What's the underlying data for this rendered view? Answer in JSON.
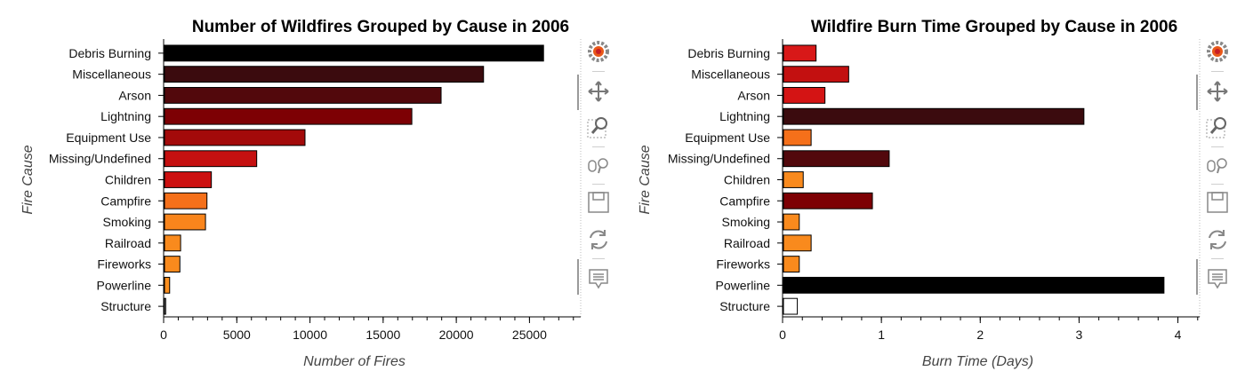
{
  "toolbar_icons": [
    "bokeh-logo-icon",
    "pan-icon",
    "box-zoom-icon",
    "wheel-zoom-icon",
    "save-icon",
    "reset-icon",
    "hover-icon"
  ],
  "charts": [
    {
      "type": "bar",
      "orientation": "horizontal",
      "title": "Number of Wildfires Grouped by Cause in 2006",
      "xlabel": "Number of Fires",
      "ylabel": "Fire Cause",
      "categories": [
        "Debris Burning",
        "Miscellaneous",
        "Arson",
        "Lightning",
        "Equipment Use",
        "Missing/Undefined",
        "Children",
        "Campfire",
        "Smoking",
        "Railroad",
        "Fireworks",
        "Powerline",
        "Structure"
      ],
      "values": [
        25900,
        21800,
        18900,
        16900,
        9600,
        6300,
        3200,
        2900,
        2800,
        1100,
        1050,
        350,
        80
      ],
      "colors": [
        "#000000",
        "#3b0b0e",
        "#52080c",
        "#7d0004",
        "#a30a0a",
        "#c51010",
        "#cc1010",
        "#f5701a",
        "#f9851c",
        "#f98a1d",
        "#f98a1d",
        "#fb8f1f",
        "#ffffff"
      ],
      "xlim": [
        0,
        28500
      ],
      "xticks": [
        0,
        5000,
        10000,
        15000,
        20000,
        25000
      ],
      "xtick_labels": [
        "0",
        "5000",
        "10000",
        "15000",
        "20000",
        "25000"
      ]
    },
    {
      "type": "bar",
      "orientation": "horizontal",
      "title": "Wildfire Burn Time Grouped by Cause in 2006",
      "xlabel": "Burn Time (Days)",
      "ylabel": "Fire Cause",
      "categories": [
        "Debris Burning",
        "Miscellaneous",
        "Arson",
        "Lightning",
        "Equipment Use",
        "Missing/Undefined",
        "Children",
        "Campfire",
        "Smoking",
        "Railroad",
        "Fireworks",
        "Powerline",
        "Structure"
      ],
      "values": [
        0.33,
        0.66,
        0.42,
        3.04,
        0.28,
        1.07,
        0.2,
        0.9,
        0.16,
        0.28,
        0.16,
        3.85,
        0.14
      ],
      "colors": [
        "#d81818",
        "#c31010",
        "#d41414",
        "#3b0b0e",
        "#f5701a",
        "#52080c",
        "#f98a1d",
        "#7d0004",
        "#f98a1d",
        "#f98a1d",
        "#f98a1d",
        "#000000",
        "#ffffff"
      ],
      "xlim": [
        0,
        4.22
      ],
      "xticks": [
        0,
        1,
        2,
        3,
        4
      ],
      "xtick_labels": [
        "0",
        "1",
        "2",
        "3",
        "4"
      ]
    }
  ]
}
